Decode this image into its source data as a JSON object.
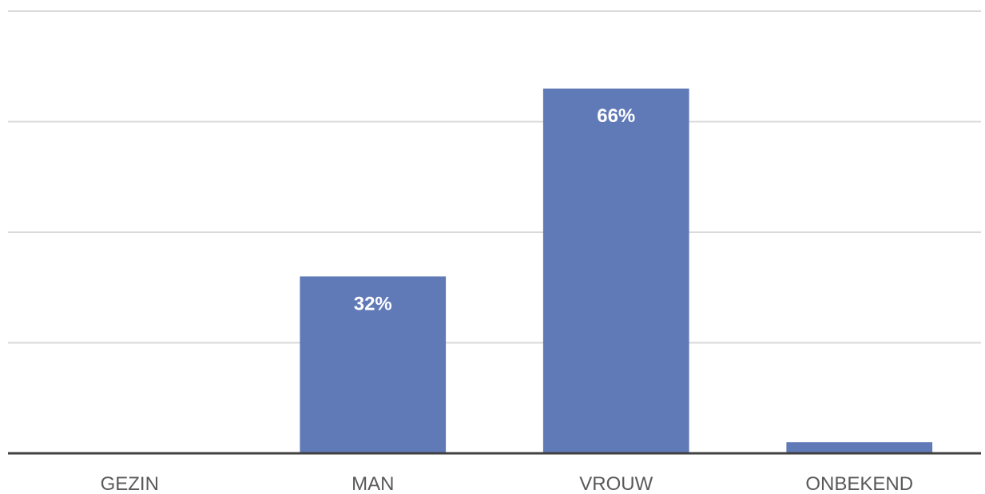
{
  "chart_data": {
    "type": "bar",
    "categories": [
      "GEZIN",
      "MAN",
      "VROUW",
      "ONBEKEND"
    ],
    "values": [
      0,
      32,
      66,
      2
    ],
    "data_labels": [
      "",
      "32%",
      "66%",
      ""
    ],
    "ylim": [
      0,
      80
    ],
    "title": "",
    "xlabel": "",
    "ylabel": "",
    "grid": true,
    "legend": "none",
    "bar_color": "#6079b7",
    "gridline_color": "#d9d9d9",
    "axis_color": "#404040"
  }
}
